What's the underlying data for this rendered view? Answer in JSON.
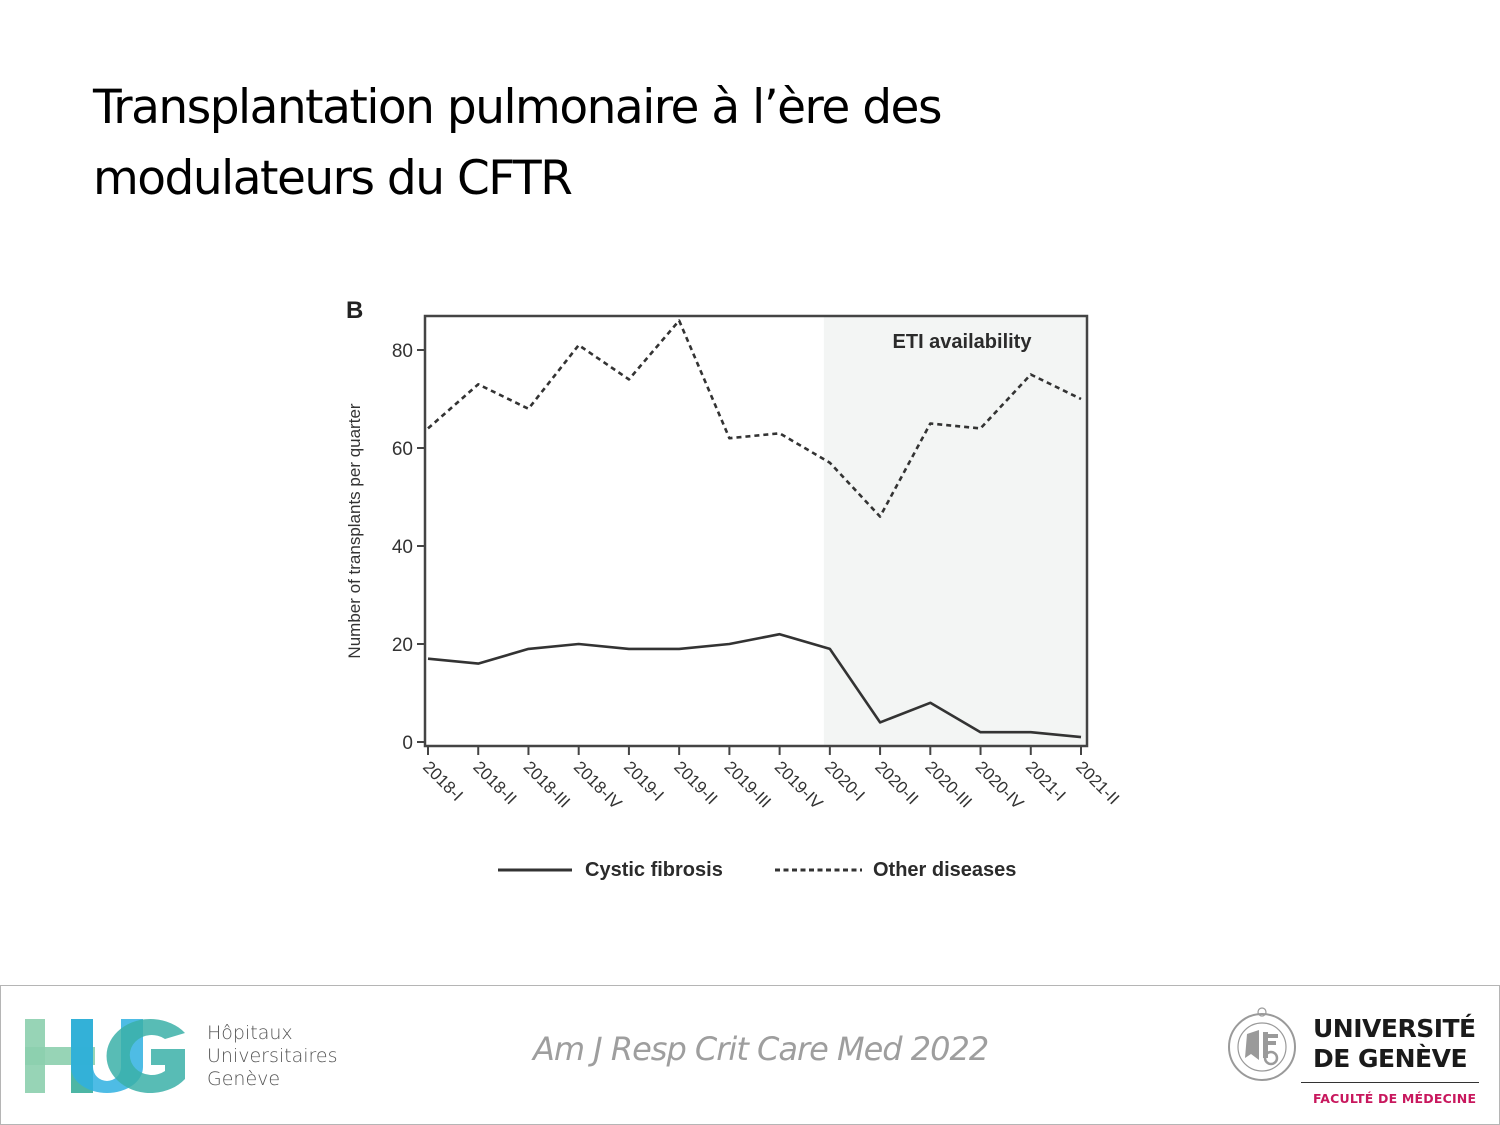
{
  "slide": {
    "title_lines": [
      "Transplantation pulmonaire à l’ère des",
      "modulateurs du CFTR"
    ]
  },
  "chart_data": {
    "type": "line",
    "panel_label": "B",
    "title": "",
    "xlabel": "",
    "ylabel": "Number of transplants per quarter",
    "ylim": [
      0,
      88
    ],
    "yticks": [
      0,
      20,
      40,
      60,
      80
    ],
    "grid": false,
    "legend_position": "bottom",
    "categories": [
      "2018-I",
      "2018-II",
      "2018-III",
      "2018-IV",
      "2019-I",
      "2019-II",
      "2019-III",
      "2019-IV",
      "2020-I",
      "2020-II",
      "2020-III",
      "2020-IV",
      "2021-I",
      "2021-II"
    ],
    "series": [
      {
        "name": "Cystic fibrosis",
        "style": "solid",
        "values": [
          17,
          16,
          19,
          20,
          19,
          19,
          20,
          22,
          19,
          4,
          8,
          2,
          2,
          1
        ]
      },
      {
        "name": "Other diseases",
        "style": "dotted",
        "values": [
          64,
          73,
          68,
          81,
          74,
          86,
          62,
          63,
          57,
          46,
          65,
          64,
          75,
          70
        ]
      }
    ],
    "annotations": [
      {
        "text": "ETI availability",
        "shaded_from": "2020-I",
        "shaded_to": "2021-II",
        "shade_color": "#f3f5f4"
      }
    ],
    "colors": {
      "line": "#333333",
      "axis": "#444444",
      "tick_label": "#333333",
      "shade": "#f3f5f4"
    }
  },
  "footer": {
    "hug": {
      "logo_letters": "HUG",
      "lines": [
        "Hôpitaux",
        "Universitaires",
        "Genève"
      ],
      "colors": [
        "#8ccfae",
        "#3aae9b",
        "#2fb0e0",
        "#3bb0a8"
      ]
    },
    "citation": "Am J Resp Crit Care Med 2022",
    "unige": {
      "lines": [
        "UNIVERSITÉ",
        "DE GENÈVE"
      ],
      "faculty": "FACULTÉ DE MÉDECINE",
      "seal_text": "SCHOLA GENEVENSIS 1559",
      "faculty_color": "#c8175d"
    }
  }
}
